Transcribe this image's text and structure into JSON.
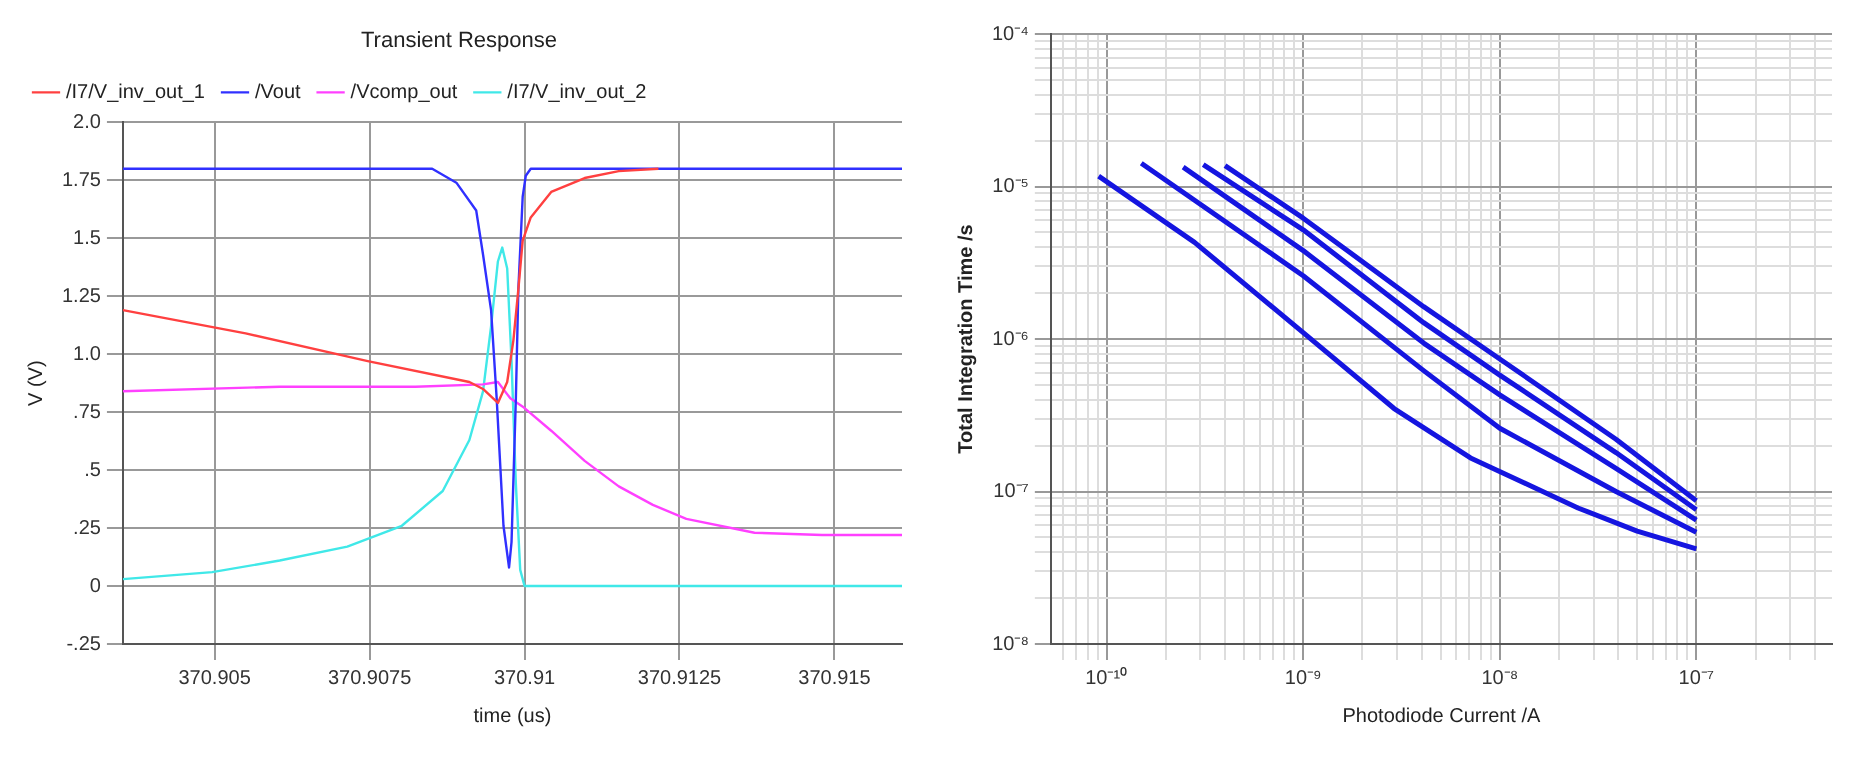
{
  "chart_data": [
    {
      "type": "line",
      "title": "Transient Response",
      "xlabel": "time (us)",
      "ylabel": "V (V)",
      "legend": "top",
      "grid": true,
      "marker": "none",
      "line_style": "solid",
      "xlim": [
        370.90352,
        370.91609
      ],
      "xticks": [
        370.905,
        370.9075,
        370.91,
        370.9125,
        370.915
      ],
      "ylim": [
        -0.25,
        2.0
      ],
      "yticks": [
        {
          "value": -0.25,
          "label": "-.25"
        },
        0,
        {
          "value": 0.25,
          "label": ".25"
        },
        {
          "value": 0.5,
          "label": ".5"
        },
        {
          "value": 0.75,
          "label": ".75"
        },
        {
          "value": 1.0,
          "label": "1.0"
        },
        1.25,
        1.5,
        1.75,
        {
          "value": 2.0,
          "label": "2.0"
        }
      ],
      "series": [
        {
          "name": "/I7/V_inv_out_1",
          "color": "#ff4040",
          "x": [
            370.90352,
            370.9055,
            370.90747,
            370.90911,
            370.90933,
            370.90957,
            370.90972,
            370.90982,
            370.9099,
            370.90997,
            370.9101,
            370.91043,
            370.91097,
            370.91152,
            370.91216
          ],
          "values": [
            1.19,
            1.09,
            0.97,
            0.88,
            0.85,
            0.79,
            0.88,
            1.06,
            1.28,
            1.49,
            1.59,
            1.7,
            1.76,
            1.79,
            1.8
          ]
        },
        {
          "name": "/Vout",
          "color": "#3030ff",
          "x": [
            370.90352,
            370.90851,
            370.9089,
            370.90922,
            370.90933,
            370.90946,
            370.90955,
            370.90966,
            370.90975,
            370.90979,
            370.90986,
            370.9099,
            370.90997,
            370.91002,
            370.9101,
            370.91609
          ],
          "values": [
            1.8,
            1.8,
            1.74,
            1.62,
            1.43,
            1.19,
            0.81,
            0.26,
            0.08,
            0.19,
            0.81,
            1.28,
            1.68,
            1.77,
            1.8,
            1.8
          ]
        },
        {
          "name": "/Vcomp_out",
          "color": "#ff40ff",
          "x": [
            370.90352,
            370.90605,
            370.90824,
            370.90933,
            370.90957,
            370.90977,
            370.90999,
            370.91043,
            370.91097,
            370.91152,
            370.91207,
            370.91261,
            370.91371,
            370.9148,
            370.91609
          ],
          "values": [
            0.84,
            0.86,
            0.86,
            0.87,
            0.88,
            0.81,
            0.77,
            0.67,
            0.54,
            0.43,
            0.35,
            0.29,
            0.23,
            0.22,
            0.22
          ]
        },
        {
          "name": "/I7/V_inv_out_2",
          "color": "#40e8e8",
          "x": [
            370.90352,
            370.90496,
            370.90605,
            370.90714,
            370.90802,
            370.90868,
            370.90911,
            370.90933,
            370.90946,
            370.90957,
            370.90964,
            370.90972,
            370.90979,
            370.90986,
            370.90993,
            370.91,
            370.91609
          ],
          "values": [
            0.03,
            0.06,
            0.11,
            0.17,
            0.26,
            0.41,
            0.63,
            0.84,
            1.12,
            1.4,
            1.46,
            1.37,
            0.97,
            0.44,
            0.07,
            0,
            0
          ]
        }
      ]
    },
    {
      "type": "line",
      "xlabel": "Photodiode Current /A",
      "ylabel": "Total Integration Time /s",
      "log": "xy",
      "grid": true,
      "legend": false,
      "marker": "none",
      "xlim": [
        5.2e-11,
        4.9e-07
      ],
      "xticks": [
        {
          "value": 6e-11,
          "label": null
        },
        {
          "value": 7e-11,
          "label": null
        },
        {
          "value": 8e-11,
          "label": null
        },
        {
          "value": 9e-11,
          "label": null
        },
        {
          "value": 1e-10,
          "label": "10⁻¹⁰"
        },
        {
          "value": 2e-10,
          "label": null
        },
        {
          "value": 3e-10,
          "label": null
        },
        {
          "value": 4e-10,
          "label": null
        },
        {
          "value": 5e-10,
          "label": null
        },
        {
          "value": 6e-10,
          "label": null
        },
        {
          "value": 7e-10,
          "label": null
        },
        {
          "value": 8e-10,
          "label": null
        },
        {
          "value": 9e-10,
          "label": null
        },
        {
          "value": 1e-09,
          "label": "10⁻⁹"
        },
        {
          "value": 2e-09,
          "label": null
        },
        {
          "value": 3e-09,
          "label": null
        },
        {
          "value": 4e-09,
          "label": null
        },
        {
          "value": 5e-09,
          "label": null
        },
        {
          "value": 6e-09,
          "label": null
        },
        {
          "value": 7e-09,
          "label": null
        },
        {
          "value": 8e-09,
          "label": null
        },
        {
          "value": 9e-09,
          "label": null
        },
        {
          "value": 1e-08,
          "label": "10⁻⁸"
        },
        {
          "value": 2e-08,
          "label": null
        },
        {
          "value": 3e-08,
          "label": null
        },
        {
          "value": 4e-08,
          "label": null
        },
        {
          "value": 5e-08,
          "label": null
        },
        {
          "value": 6e-08,
          "label": null
        },
        {
          "value": 7e-08,
          "label": null
        },
        {
          "value": 8e-08,
          "label": null
        },
        {
          "value": 9e-08,
          "label": null
        },
        {
          "value": 1e-07,
          "label": "10⁻⁷"
        },
        {
          "value": 2e-07,
          "label": null
        },
        {
          "value": 3e-07,
          "label": null
        },
        {
          "value": 4e-07,
          "label": null
        }
      ],
      "ylim": [
        1e-08,
        0.0001
      ],
      "yticks": [
        {
          "value": 1e-08,
          "label": "10⁻⁸"
        },
        {
          "value": 2e-08,
          "label": null
        },
        {
          "value": 3e-08,
          "label": null
        },
        {
          "value": 4e-08,
          "label": null
        },
        {
          "value": 5e-08,
          "label": null
        },
        {
          "value": 6e-08,
          "label": null
        },
        {
          "value": 7e-08,
          "label": null
        },
        {
          "value": 8e-08,
          "label": null
        },
        {
          "value": 9e-08,
          "label": null
        },
        {
          "value": 1e-07,
          "label": "10⁻⁷"
        },
        {
          "value": 2e-07,
          "label": null
        },
        {
          "value": 3e-07,
          "label": null
        },
        {
          "value": 4e-07,
          "label": null
        },
        {
          "value": 5e-07,
          "label": null
        },
        {
          "value": 6e-07,
          "label": null
        },
        {
          "value": 7e-07,
          "label": null
        },
        {
          "value": 8e-07,
          "label": null
        },
        {
          "value": 9e-07,
          "label": null
        },
        {
          "value": 1e-06,
          "label": "10⁻⁶"
        },
        {
          "value": 2e-06,
          "label": null
        },
        {
          "value": 3e-06,
          "label": null
        },
        {
          "value": 4e-06,
          "label": null
        },
        {
          "value": 5e-06,
          "label": null
        },
        {
          "value": 6e-06,
          "label": null
        },
        {
          "value": 7e-06,
          "label": null
        },
        {
          "value": 8e-06,
          "label": null
        },
        {
          "value": 9e-06,
          "label": null
        },
        {
          "value": 1e-05,
          "label": "10⁻⁵"
        },
        {
          "value": 2e-05,
          "label": null
        },
        {
          "value": 3e-05,
          "label": null
        },
        {
          "value": 4e-05,
          "label": null
        },
        {
          "value": 5e-05,
          "label": null
        },
        {
          "value": 6e-05,
          "label": null
        },
        {
          "value": 7e-05,
          "label": null
        },
        {
          "value": 8e-05,
          "label": null
        },
        {
          "value": 9e-05,
          "label": null
        },
        {
          "value": 0.0001,
          "label": "10⁻⁴"
        }
      ],
      "series": [
        {
          "color": "#1515e0",
          "x": [
            9.1e-11,
            2.8e-10,
            1e-09,
            2.9e-09,
            7.1e-09,
            2.5e-08,
            5e-08,
            1e-07
          ],
          "values": [
            1.17e-05,
            4.3e-06,
            1.1e-06,
            3.5e-07,
            1.66e-07,
            7.8e-08,
            5.5e-08,
            4.2e-08
          ]
        },
        {
          "color": "#1515e0",
          "x": [
            1.5e-10,
            1e-09,
            4.1e-09,
            1e-08,
            3.9e-08,
            1e-07
          ],
          "values": [
            1.42e-05,
            2.6e-06,
            6.2e-07,
            2.6e-07,
            1e-07,
            5.4e-08
          ]
        },
        {
          "color": "#1515e0",
          "x": [
            2.45e-10,
            1e-09,
            4.1e-09,
            1e-08,
            3.9e-08,
            1e-07
          ],
          "values": [
            1.34e-05,
            3.8e-06,
            9.4e-07,
            4.3e-07,
            1.42e-07,
            6.5e-08
          ]
        },
        {
          "color": "#1515e0",
          "x": [
            3.1e-10,
            1e-09,
            4.1e-09,
            1e-08,
            3.9e-08,
            1e-07
          ],
          "values": [
            1.39e-05,
            5.2e-06,
            1.28e-06,
            5.8e-07,
            1.8e-07,
            7.6e-08
          ]
        },
        {
          "color": "#1515e0",
          "x": [
            4e-10,
            1e-09,
            4.1e-09,
            1e-08,
            3.9e-08,
            1e-07
          ],
          "values": [
            1.37e-05,
            6.2e-06,
            1.63e-06,
            7.4e-07,
            2.2e-07,
            8.7e-08
          ]
        }
      ]
    }
  ]
}
